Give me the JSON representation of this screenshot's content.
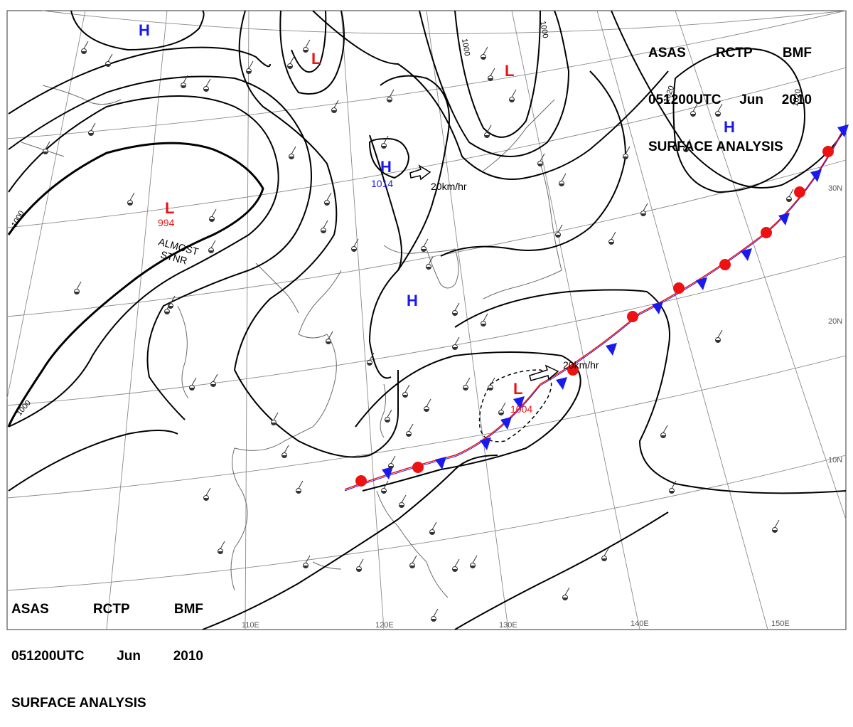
{
  "header": {
    "line1": [
      "ASAS",
      "RCTP",
      "BMF"
    ],
    "line2": [
      "051200UTC",
      "Jun",
      "2010"
    ],
    "line3": "SURFACE ANALYSIS"
  },
  "lon_labels": [
    "110E",
    "120E",
    "130E",
    "140E",
    "150E"
  ],
  "lat_labels": [
    "30N",
    "20N",
    "10N"
  ],
  "isobar_labels": [
    "1000",
    "1000",
    "1000",
    "1000",
    "1020",
    "1020"
  ],
  "pressure_centers": [
    {
      "type": "H",
      "value": ""
    },
    {
      "type": "L",
      "value": ""
    },
    {
      "type": "L",
      "value": ""
    },
    {
      "type": "H",
      "value": ""
    },
    {
      "type": "L",
      "value": "994"
    },
    {
      "type": "H",
      "value": "1014"
    },
    {
      "type": "H",
      "value": ""
    },
    {
      "type": "L",
      "value": "1004"
    }
  ],
  "annotations": [
    "ALMOST",
    "STNR"
  ],
  "motion_labels": [
    "20km/hr",
    "20km/hr"
  ],
  "colors": {
    "high": "#1a1aee",
    "low": "#ee1111",
    "cold_front": "#1a1aee",
    "warm_front": "#ee1111",
    "isobar": "#000000",
    "grid": "#8a8a8a",
    "coast": "#6a6a6a"
  }
}
